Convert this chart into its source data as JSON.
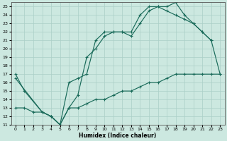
{
  "xlabel": "Humidex (Indice chaleur)",
  "xlim": [
    -0.5,
    23.5
  ],
  "ylim": [
    11,
    25.5
  ],
  "xticks": [
    0,
    1,
    2,
    3,
    4,
    5,
    6,
    7,
    8,
    9,
    10,
    11,
    12,
    13,
    14,
    15,
    16,
    17,
    18,
    19,
    20,
    21,
    22,
    23
  ],
  "yticks": [
    11,
    12,
    13,
    14,
    15,
    16,
    17,
    18,
    19,
    20,
    21,
    22,
    23,
    24,
    25
  ],
  "bg_color": "#cce8e0",
  "line_color": "#1a6b5a",
  "grid_color": "#aacfc7",
  "line1_x": [
    0,
    1,
    3,
    4,
    5,
    6,
    7,
    8,
    9,
    10,
    11,
    12,
    13,
    14,
    15,
    16,
    17,
    18,
    19,
    20,
    21,
    22
  ],
  "line1_y": [
    17,
    15,
    12.5,
    12,
    11,
    13,
    14.5,
    19,
    20,
    21.5,
    22,
    22,
    21.5,
    23,
    24.5,
    25,
    25,
    25.5,
    24,
    23,
    22,
    21
  ],
  "line2_x": [
    0,
    3,
    4,
    5,
    6,
    7,
    8,
    9,
    10,
    11,
    12,
    13,
    14,
    15,
    16,
    17,
    18,
    19,
    20,
    21,
    22,
    23
  ],
  "line2_y": [
    16.5,
    12.5,
    12,
    11,
    16,
    16.5,
    17,
    21,
    22,
    22,
    22,
    22,
    24,
    25,
    25,
    24.5,
    24,
    23.5,
    23,
    22,
    21,
    17
  ],
  "line3_x": [
    0,
    1,
    2,
    3,
    4,
    5,
    6,
    7,
    8,
    9,
    10,
    11,
    12,
    13,
    14,
    15,
    16,
    17,
    18,
    19,
    20,
    21,
    22,
    23
  ],
  "line3_y": [
    13,
    13,
    12.5,
    12.5,
    12,
    11,
    13,
    13,
    13.5,
    14,
    14,
    14.5,
    15,
    15,
    15.5,
    16,
    16,
    16.5,
    17,
    17,
    17,
    17,
    17,
    17
  ]
}
